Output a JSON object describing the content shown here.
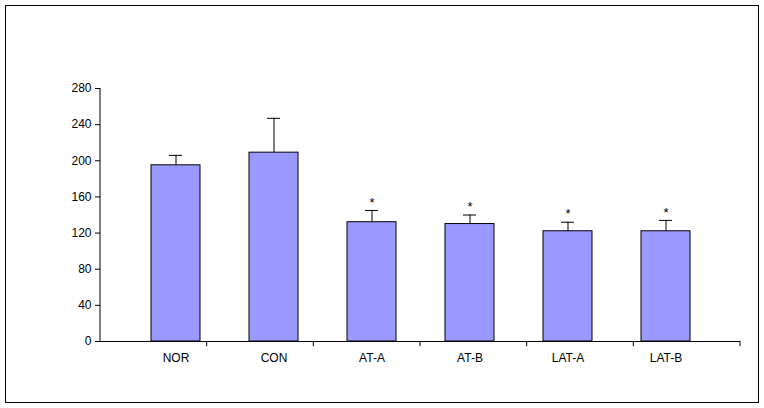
{
  "chart_data": {
    "type": "bar",
    "categories": [
      "NOR",
      "CON",
      "AT-A",
      "AT-B",
      "LAT-A",
      "LAT-B"
    ],
    "values": [
      195,
      209,
      132,
      130,
      122,
      122
    ],
    "error": [
      11,
      38,
      13,
      10,
      10,
      12
    ],
    "significance": [
      null,
      null,
      "*",
      "*",
      "*",
      "*"
    ],
    "color": "#9999ff",
    "ylim": [
      0,
      280
    ],
    "yticks": [
      0,
      40,
      80,
      120,
      160,
      200,
      240,
      280
    ],
    "grid": false
  }
}
